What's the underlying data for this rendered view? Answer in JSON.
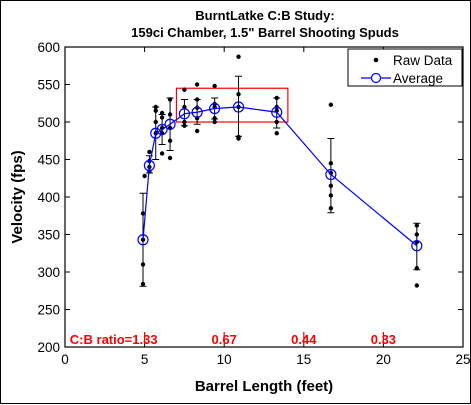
{
  "chart_data": {
    "type": "scatter",
    "title_lines": [
      "BurntLatke C:B Study:",
      "159ci Chamber, 1.5\" Barrel Shooting Spuds"
    ],
    "xlabel": "Barrel Length (feet)",
    "ylabel": "Velocity (fps)",
    "xlim": [
      0,
      25
    ],
    "ylim": [
      200,
      600
    ],
    "xticks": [
      0,
      5,
      10,
      15,
      20,
      25
    ],
    "yticks": [
      200,
      250,
      300,
      350,
      400,
      450,
      500,
      550,
      600
    ],
    "grid": false,
    "legend": {
      "placement": "top-right",
      "entries": [
        "Raw Data",
        "Average"
      ]
    },
    "series": [
      {
        "name": "Raw Data",
        "kind": "points",
        "color": "#000000",
        "points": [
          [
            4.9,
            284
          ],
          [
            4.9,
            310
          ],
          [
            4.9,
            343
          ],
          [
            4.9,
            378
          ],
          [
            5.0,
            428
          ],
          [
            5.3,
            434
          ],
          [
            5.3,
            440
          ],
          [
            5.3,
            448
          ],
          [
            5.3,
            460
          ],
          [
            5.7,
            485
          ],
          [
            5.7,
            500
          ],
          [
            5.7,
            515
          ],
          [
            5.7,
            520
          ],
          [
            6.1,
            458
          ],
          [
            6.1,
            485
          ],
          [
            6.1,
            492
          ],
          [
            6.1,
            506
          ],
          [
            6.1,
            512
          ],
          [
            6.6,
            452
          ],
          [
            6.6,
            475
          ],
          [
            6.6,
            492
          ],
          [
            6.6,
            510
          ],
          [
            6.6,
            530
          ],
          [
            7.5,
            495
          ],
          [
            7.5,
            500
          ],
          [
            7.5,
            520
          ],
          [
            7.5,
            543
          ],
          [
            8.3,
            488
          ],
          [
            8.3,
            505
          ],
          [
            8.3,
            519
          ],
          [
            8.3,
            530
          ],
          [
            8.3,
            550
          ],
          [
            9.4,
            500
          ],
          [
            9.4,
            505
          ],
          [
            9.4,
            520
          ],
          [
            9.4,
            524
          ],
          [
            9.4,
            548
          ],
          [
            10.9,
            478
          ],
          [
            10.9,
            480
          ],
          [
            10.9,
            520
          ],
          [
            10.9,
            537
          ],
          [
            10.9,
            587
          ],
          [
            13.3,
            485
          ],
          [
            13.3,
            500
          ],
          [
            13.3,
            515
          ],
          [
            13.3,
            520
          ],
          [
            13.3,
            532
          ],
          [
            16.7,
            385
          ],
          [
            16.7,
            402
          ],
          [
            16.7,
            415
          ],
          [
            16.7,
            432
          ],
          [
            16.7,
            445
          ],
          [
            16.7,
            523
          ],
          [
            22.1,
            282
          ],
          [
            22.1,
            305
          ],
          [
            22.1,
            340
          ],
          [
            22.1,
            350
          ],
          [
            22.1,
            362
          ]
        ]
      },
      {
        "name": "Average",
        "kind": "line",
        "color": "#0000ff",
        "x": [
          4.9,
          5.3,
          5.7,
          6.1,
          6.6,
          7.5,
          8.3,
          9.4,
          10.9,
          13.3,
          16.7,
          22.1
        ],
        "y": [
          343,
          442,
          485,
          490,
          497,
          511,
          513,
          518,
          520,
          513,
          430,
          335
        ]
      }
    ],
    "error_bars": [
      {
        "x": 4.9,
        "low": 281,
        "high": 405
      },
      {
        "x": 5.3,
        "low": 432,
        "high": 455
      },
      {
        "x": 5.7,
        "low": 450,
        "high": 520
      },
      {
        "x": 6.1,
        "low": 470,
        "high": 510
      },
      {
        "x": 6.6,
        "low": 462,
        "high": 532
      },
      {
        "x": 7.5,
        "low": 495,
        "high": 530
      },
      {
        "x": 8.3,
        "low": 497,
        "high": 530
      },
      {
        "x": 9.4,
        "low": 504,
        "high": 532
      },
      {
        "x": 10.9,
        "low": 481,
        "high": 561
      },
      {
        "x": 13.3,
        "low": 492,
        "high": 532
      },
      {
        "x": 16.7,
        "low": 379,
        "high": 478
      },
      {
        "x": 22.1,
        "low": 303,
        "high": 365
      }
    ],
    "highlight_box": {
      "x": [
        7.0,
        14.0
      ],
      "y": [
        500,
        545
      ],
      "color": "#ff0000"
    },
    "ratio_annotations": {
      "color": "#ff0000",
      "prefix": "C:B ratio=",
      "markers": [
        {
          "x": 5.0,
          "label": "1.33"
        },
        {
          "x": 10.0,
          "label": "0.67"
        },
        {
          "x": 15.0,
          "label": "0.44"
        },
        {
          "x": 20.0,
          "label": "0.33"
        }
      ]
    }
  }
}
